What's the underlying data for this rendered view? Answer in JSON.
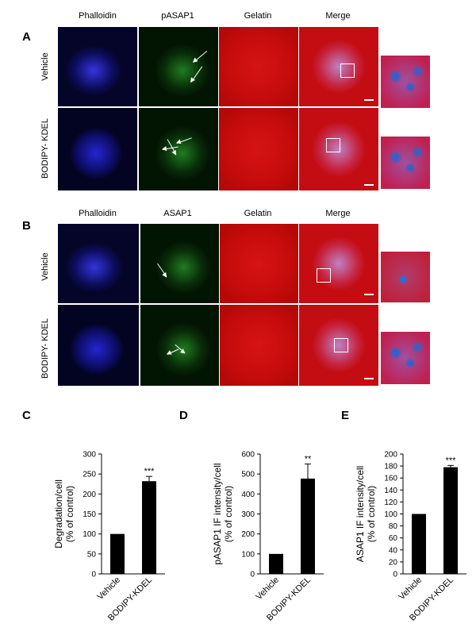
{
  "panel_a": {
    "letter": "A",
    "columns": [
      "Phalloidin",
      "pASAP1",
      "Gelatin",
      "Merge"
    ],
    "rows": [
      "Vehicle",
      "BODIPY- KDEL"
    ]
  },
  "panel_b": {
    "letter": "B",
    "columns": [
      "Phalloidin",
      "ASAP1",
      "Gelatin",
      "Merge"
    ],
    "rows": [
      "Vehicle",
      "BODIPY- KDEL"
    ]
  },
  "colors": {
    "phalloidin": "#1e1ec8",
    "asap1": "#1e8c1e",
    "gelatin": "#d01010",
    "bar": "#000000"
  },
  "chart_data": [
    {
      "panel": "C",
      "type": "bar",
      "categories": [
        "Vehicle",
        "BODIPY-KDEL"
      ],
      "values": [
        100,
        232
      ],
      "errors": [
        0,
        12
      ],
      "significance": [
        "",
        "***"
      ],
      "ylabel_lines": [
        "Degradation/cell",
        "(% of control)"
      ],
      "ylim": [
        0,
        300
      ],
      "yticks": [
        0,
        50,
        100,
        150,
        200,
        250,
        300
      ]
    },
    {
      "panel": "D",
      "type": "bar",
      "categories": [
        "Vehicle",
        "BODIPY-KDEL"
      ],
      "values": [
        100,
        477
      ],
      "errors": [
        0,
        73
      ],
      "significance": [
        "",
        "**"
      ],
      "ylabel_lines": [
        "pASAP1 IF intensity/cell",
        "(% of control)"
      ],
      "ylim": [
        0,
        600
      ],
      "yticks": [
        0,
        100,
        200,
        300,
        400,
        500,
        600
      ]
    },
    {
      "panel": "E",
      "type": "bar",
      "categories": [
        "Vehicle",
        "BODIPY-KDEL"
      ],
      "values": [
        100,
        178
      ],
      "errors": [
        0,
        3
      ],
      "significance": [
        "",
        "***"
      ],
      "ylabel_lines": [
        "ASAP1 IF intensity/cell",
        "(% of control)"
      ],
      "ylim": [
        0,
        200
      ],
      "yticks": [
        0,
        20,
        40,
        60,
        80,
        100,
        120,
        140,
        160,
        180,
        200
      ]
    }
  ]
}
